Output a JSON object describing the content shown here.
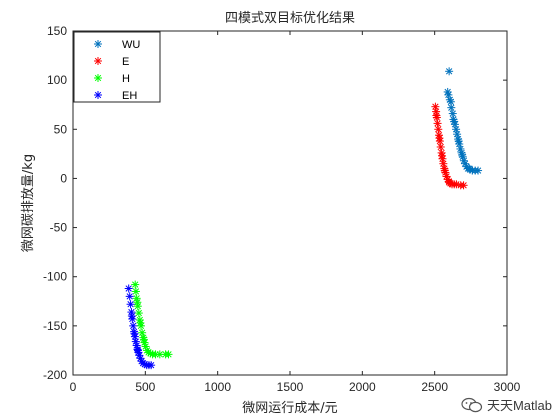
{
  "chart_data": {
    "type": "scatter",
    "title": "四模式双目标优化结果",
    "xlabel": "微网运行成本/元",
    "ylabel": "微网碳排放量/kg",
    "xlim": [
      0,
      3000
    ],
    "ylim": [
      -200,
      150
    ],
    "xticks": [
      0,
      500,
      1000,
      1500,
      2000,
      2500,
      3000
    ],
    "yticks": [
      -200,
      -150,
      -100,
      -50,
      0,
      50,
      100,
      150
    ],
    "grid": false,
    "legend_position": "top-left",
    "marker": "asterisk",
    "series": [
      {
        "name": "WU",
        "color": "#0072BD",
        "points": [
          [
            2600,
            109
          ],
          [
            2590,
            88
          ],
          [
            2595,
            85
          ],
          [
            2605,
            80
          ],
          [
            2615,
            72
          ],
          [
            2625,
            66
          ],
          [
            2630,
            60
          ],
          [
            2640,
            55
          ],
          [
            2648,
            50
          ],
          [
            2655,
            45
          ],
          [
            2662,
            40
          ],
          [
            2670,
            35
          ],
          [
            2678,
            30
          ],
          [
            2686,
            26
          ],
          [
            2694,
            22
          ],
          [
            2702,
            18
          ],
          [
            2710,
            15
          ],
          [
            2720,
            12
          ],
          [
            2730,
            10
          ],
          [
            2745,
            9
          ],
          [
            2760,
            8
          ],
          [
            2780,
            8
          ],
          [
            2800,
            8
          ],
          [
            2612,
            78
          ],
          [
            2635,
            58
          ],
          [
            2666,
            38
          ],
          [
            2690,
            24
          ],
          [
            2740,
            10
          ]
        ]
      },
      {
        "name": "E",
        "color": "#FF0000",
        "points": [
          [
            2505,
            73
          ],
          [
            2510,
            68
          ],
          [
            2515,
            62
          ],
          [
            2520,
            56
          ],
          [
            2525,
            50
          ],
          [
            2530,
            44
          ],
          [
            2536,
            38
          ],
          [
            2542,
            32
          ],
          [
            2548,
            26
          ],
          [
            2554,
            20
          ],
          [
            2560,
            15
          ],
          [
            2567,
            10
          ],
          [
            2574,
            6
          ],
          [
            2582,
            2
          ],
          [
            2590,
            -1
          ],
          [
            2598,
            -3
          ],
          [
            2608,
            -5
          ],
          [
            2620,
            -6
          ],
          [
            2635,
            -6
          ],
          [
            2650,
            -6
          ],
          [
            2680,
            -7
          ],
          [
            2700,
            -7
          ],
          [
            2512,
            64
          ],
          [
            2533,
            41
          ],
          [
            2551,
            23
          ],
          [
            2570,
            8
          ],
          [
            2600,
            -4
          ]
        ]
      },
      {
        "name": "H",
        "color": "#00FF00",
        "points": [
          [
            430,
            -108
          ],
          [
            435,
            -115
          ],
          [
            440,
            -122
          ],
          [
            448,
            -130
          ],
          [
            455,
            -137
          ],
          [
            462,
            -144
          ],
          [
            470,
            -150
          ],
          [
            478,
            -157
          ],
          [
            486,
            -162
          ],
          [
            494,
            -167
          ],
          [
            502,
            -171
          ],
          [
            512,
            -175
          ],
          [
            522,
            -177
          ],
          [
            535,
            -178
          ],
          [
            550,
            -179
          ],
          [
            570,
            -179
          ],
          [
            600,
            -179
          ],
          [
            640,
            -179
          ],
          [
            660,
            -179
          ],
          [
            445,
            -126
          ],
          [
            466,
            -147
          ],
          [
            490,
            -164
          ]
        ]
      },
      {
        "name": "EH",
        "color": "#0000FF",
        "points": [
          [
            385,
            -112
          ],
          [
            392,
            -120
          ],
          [
            398,
            -128
          ],
          [
            404,
            -136
          ],
          [
            410,
            -143
          ],
          [
            416,
            -150
          ],
          [
            422,
            -156
          ],
          [
            428,
            -161
          ],
          [
            434,
            -166
          ],
          [
            440,
            -170
          ],
          [
            446,
            -174
          ],
          [
            452,
            -177
          ],
          [
            458,
            -180
          ],
          [
            466,
            -183
          ],
          [
            474,
            -186
          ],
          [
            484,
            -188
          ],
          [
            496,
            -189
          ],
          [
            510,
            -190
          ],
          [
            525,
            -190
          ],
          [
            540,
            -190
          ],
          [
            407,
            -140
          ],
          [
            425,
            -158
          ],
          [
            449,
            -175
          ]
        ]
      }
    ]
  },
  "watermark": {
    "text": "天天Matlab"
  }
}
